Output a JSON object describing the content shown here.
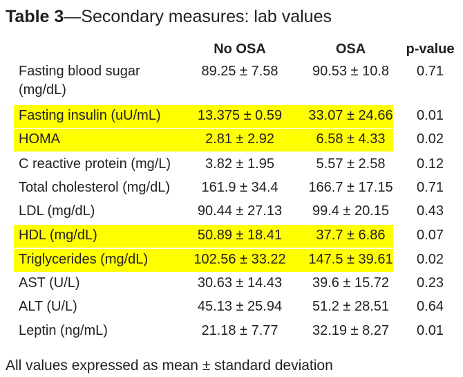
{
  "title": {
    "bold": "Table 3",
    "rest": "—Secondary measures: lab values"
  },
  "headers": {
    "col1": "No OSA",
    "col2": "OSA",
    "col3": "p-value"
  },
  "colors": {
    "highlight": "#ffff00",
    "text": "#231f20"
  },
  "rows": [
    {
      "label": "Fasting blood sugar (mg/dL)",
      "no_osa": "89.25 ± 7.58",
      "osa": "90.53 ± 10.8",
      "p": "0.71",
      "highlighted": false
    },
    {
      "label": "Fasting insulin (uU/mL)",
      "no_osa": "13.375 ± 0.59",
      "osa": "33.07 ± 24.66",
      "p": "0.01",
      "highlighted": true
    },
    {
      "label": "HOMA",
      "no_osa": "2.81 ± 2.92",
      "osa": "6.58 ± 4.33",
      "p": "0.02",
      "highlighted": true
    },
    {
      "label": "C reactive protein (mg/L)",
      "no_osa": "3.82 ± 1.95",
      "osa": "5.57 ± 2.58",
      "p": "0.12",
      "highlighted": false
    },
    {
      "label": "Total cholesterol (mg/dL)",
      "no_osa": "161.9 ± 34.4",
      "osa": "166.7 ± 17.15",
      "p": "0.71",
      "highlighted": false
    },
    {
      "label": "LDL (mg/dL)",
      "no_osa": "90.44 ± 27.13",
      "osa": "99.4 ± 20.15",
      "p": "0.43",
      "highlighted": false
    },
    {
      "label": "HDL (mg/dL)",
      "no_osa": "50.89 ± 18.41",
      "osa": "37.7 ± 6.86",
      "p": "0.07",
      "highlighted": true
    },
    {
      "label": "Triglycerides (mg/dL)",
      "no_osa": "102.56 ± 33.22",
      "osa": "147.5 ± 39.61",
      "p": "0.02",
      "highlighted": true
    },
    {
      "label": "AST (U/L)",
      "no_osa": "30.63 ± 14.43",
      "osa": "39.6 ± 15.72",
      "p": "0.23",
      "highlighted": false
    },
    {
      "label": "ALT (U/L)",
      "no_osa": "45.13 ± 25.94",
      "osa": "51.2 ± 28.51",
      "p": "0.64",
      "highlighted": false
    },
    {
      "label": "Leptin (ng/mL)",
      "no_osa": "21.18 ± 7.77",
      "osa": "32.19 ± 8.27",
      "p": "0.01",
      "highlighted": false
    }
  ],
  "footnote": "All values expressed as mean ± standard deviation"
}
